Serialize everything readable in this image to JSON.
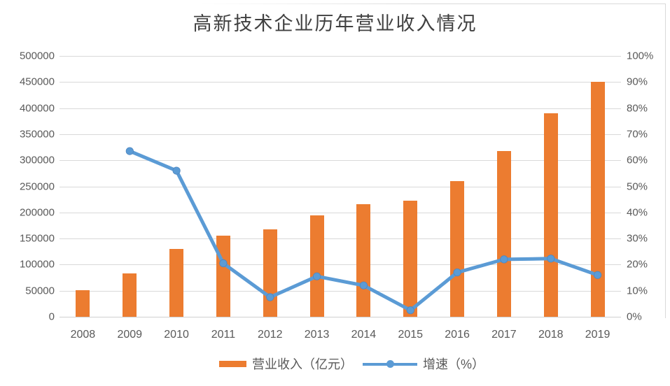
{
  "title": "高新技术企业历年营业收入情况",
  "colors": {
    "bar": "#EC7C30",
    "line": "#5B9BD5",
    "marker_edge": "#4E86C0",
    "grid": "#D9D9D9",
    "axis_text": "#595959",
    "title_text": "#404040"
  },
  "chart_data": {
    "type": "bar",
    "subtype": "combo-bar-line",
    "title": "高新技术企业历年营业收入情况",
    "categories": [
      "2008",
      "2009",
      "2010",
      "2011",
      "2012",
      "2013",
      "2014",
      "2015",
      "2016",
      "2017",
      "2018",
      "2019"
    ],
    "series": [
      {
        "name": "营业收入（亿元）",
        "type": "bar",
        "axis": "left",
        "color": "#EC7C30",
        "values": [
          51000,
          83000,
          130000,
          156000,
          167000,
          194000,
          216000,
          222000,
          260000,
          318000,
          390000,
          450000
        ]
      },
      {
        "name": "增速（%）",
        "type": "line",
        "axis": "right",
        "color": "#5B9BD5",
        "values": [
          null,
          63.5,
          56,
          20.5,
          7.5,
          15.5,
          12,
          2.5,
          17,
          22,
          22.3,
          16
        ]
      }
    ],
    "left_axis": {
      "min": 0,
      "max": 500000,
      "step": 50000,
      "tick_labels_top_to_bottom": [
        "500000",
        "450000",
        "400000",
        "350000",
        "300000",
        "250000",
        "200000",
        "150000",
        "100000",
        "50000",
        "0"
      ]
    },
    "right_axis": {
      "min": 0,
      "max": 100,
      "step": 10,
      "unit": "%",
      "tick_labels_top_to_bottom": [
        "100%",
        "90%",
        "80%",
        "70%",
        "60%",
        "50%",
        "40%",
        "30%",
        "20%",
        "10%",
        "0%"
      ]
    },
    "grid": true,
    "legend_position": "bottom",
    "xlabel": "",
    "ylabel": ""
  }
}
